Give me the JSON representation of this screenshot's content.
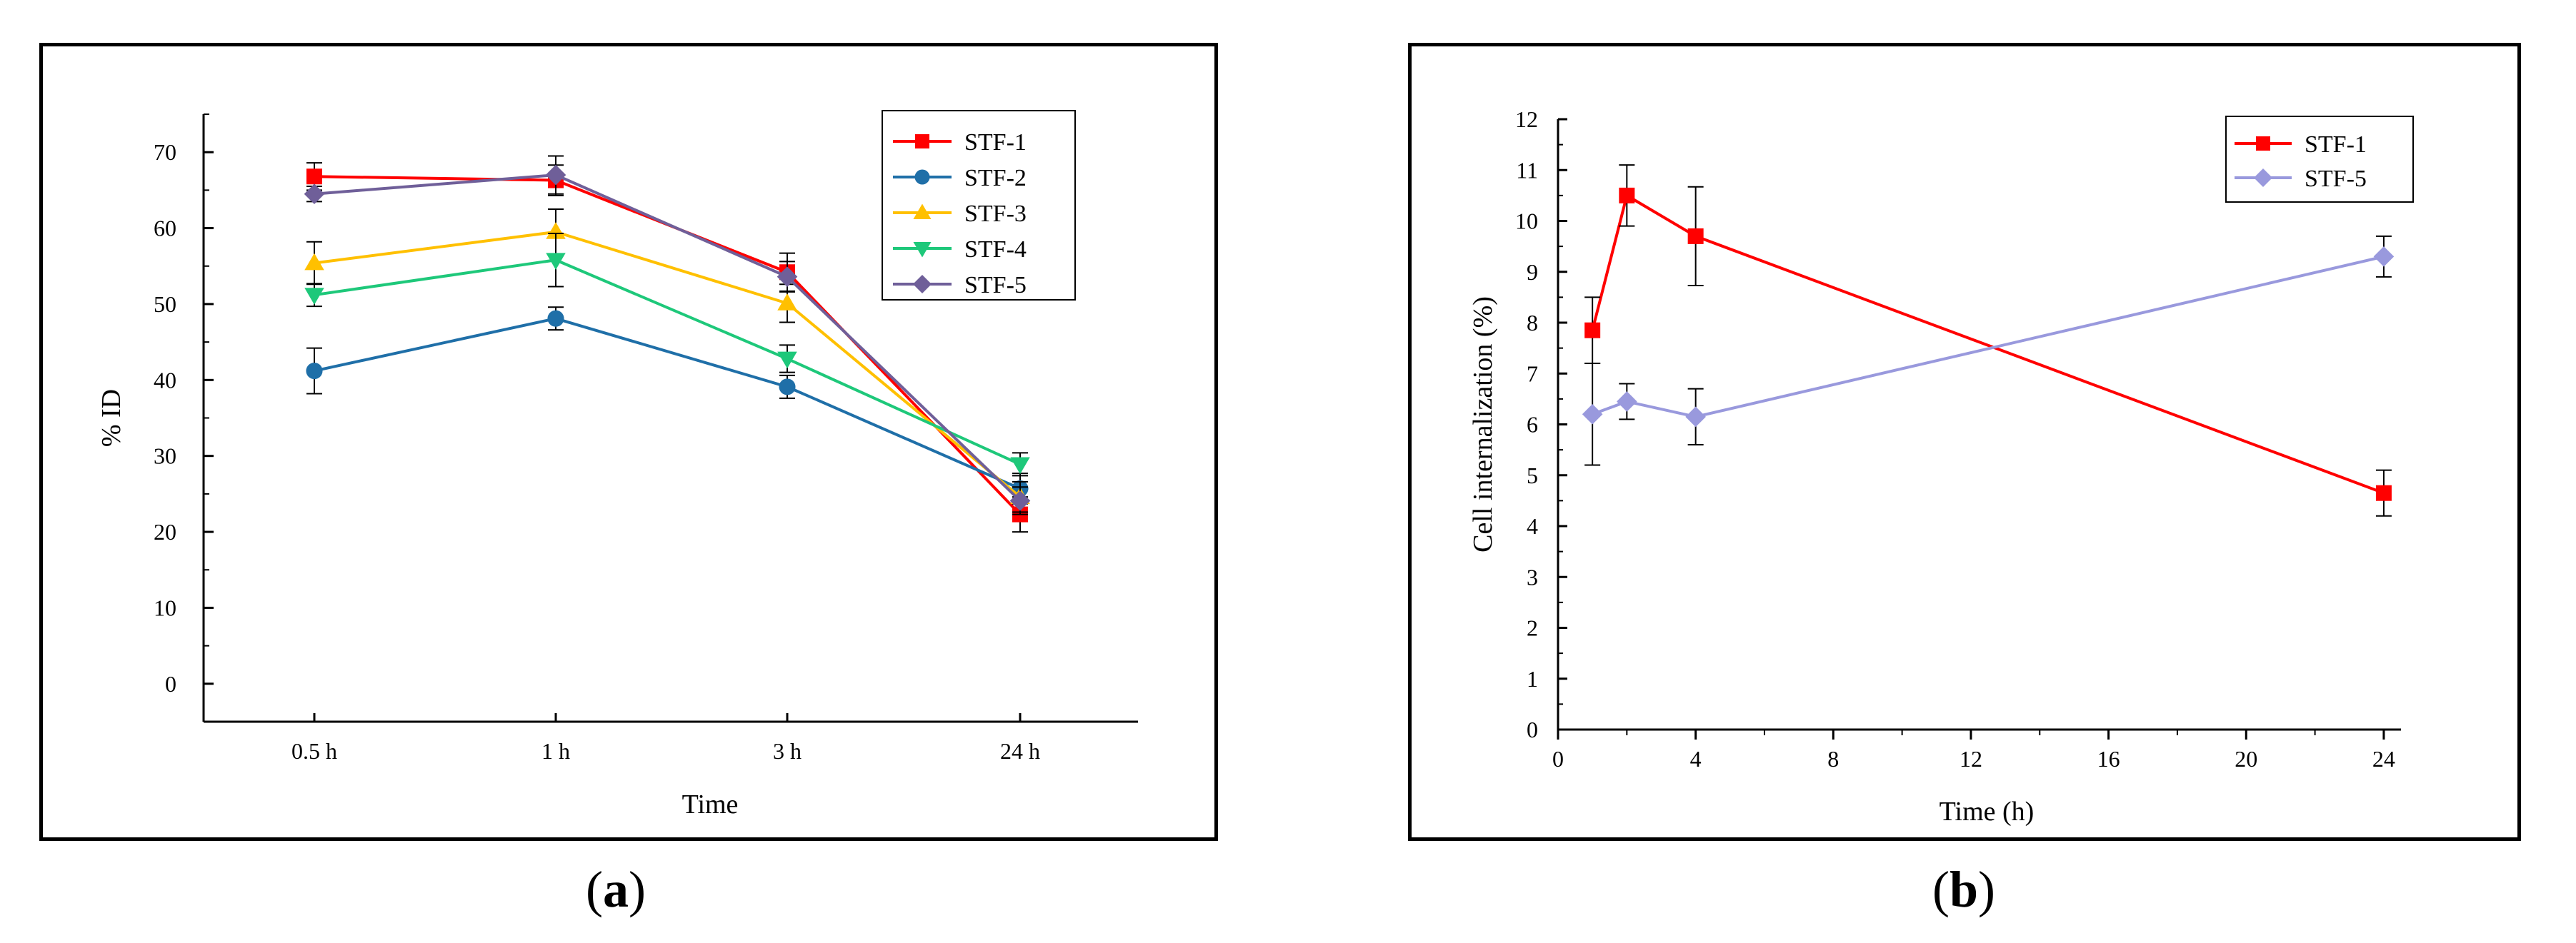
{
  "chart_data": [
    {
      "type": "line",
      "panel": "a",
      "caption_label": "a",
      "xlabel": "Time",
      "ylabel": "% ID",
      "categories": [
        "0.5 h",
        "1 h",
        "3 h",
        "24 h"
      ],
      "yticks": [
        0,
        10,
        20,
        30,
        40,
        50,
        60,
        70
      ],
      "ylim": [
        -5,
        75
      ],
      "legend_position": "top-right",
      "series": [
        {
          "name": "STF-1",
          "color": "#ff0000",
          "marker": "square",
          "values": [
            66.8,
            66.3,
            54.2,
            22.3
          ],
          "errors": [
            1.8,
            2.0,
            2.5,
            2.3
          ]
        },
        {
          "name": "STF-2",
          "color": "#1f6fa8",
          "marker": "circle",
          "values": [
            41.2,
            48.1,
            39.1,
            25.7
          ],
          "errors": [
            3.0,
            1.5,
            1.5,
            2.0
          ]
        },
        {
          "name": "STF-3",
          "color": "#ffc000",
          "marker": "triangle-up",
          "values": [
            55.4,
            59.5,
            50.1,
            24.6
          ],
          "errors": [
            2.8,
            3.0,
            2.5,
            2.0
          ]
        },
        {
          "name": "STF-4",
          "color": "#1ec87a",
          "marker": "triangle-down",
          "values": [
            51.2,
            55.8,
            42.8,
            28.9
          ],
          "errors": [
            1.5,
            3.5,
            1.8,
            1.5
          ]
        },
        {
          "name": "STF-5",
          "color": "#6f5f99",
          "marker": "diamond",
          "values": [
            64.5,
            67.0,
            53.6,
            24.1
          ],
          "errors": [
            1.0,
            2.5,
            2.0,
            1.8
          ]
        }
      ]
    },
    {
      "type": "line",
      "panel": "b",
      "caption_label": "b",
      "xlabel": "Time (h)",
      "ylabel": "Cell internalization (%)",
      "xticks": [
        0,
        4,
        8,
        12,
        16,
        20,
        24
      ],
      "yticks": [
        0,
        1,
        2,
        3,
        4,
        5,
        6,
        7,
        8,
        9,
        10,
        11,
        12
      ],
      "xlim": [
        0,
        24.5
      ],
      "ylim": [
        0,
        12
      ],
      "legend_position": "top-right",
      "series": [
        {
          "name": "STF-1",
          "color": "#ff0000",
          "marker": "square",
          "x": [
            1,
            2,
            4,
            24
          ],
          "values": [
            7.85,
            10.5,
            9.7,
            4.65
          ],
          "errors": [
            0.65,
            0.6,
            0.97,
            0.45
          ]
        },
        {
          "name": "STF-5",
          "color": "#9999dd",
          "marker": "diamond",
          "x": [
            1,
            2,
            4,
            24
          ],
          "values": [
            6.2,
            6.45,
            6.15,
            9.3
          ],
          "errors": [
            1.0,
            0.35,
            0.55,
            0.4
          ]
        }
      ]
    }
  ]
}
